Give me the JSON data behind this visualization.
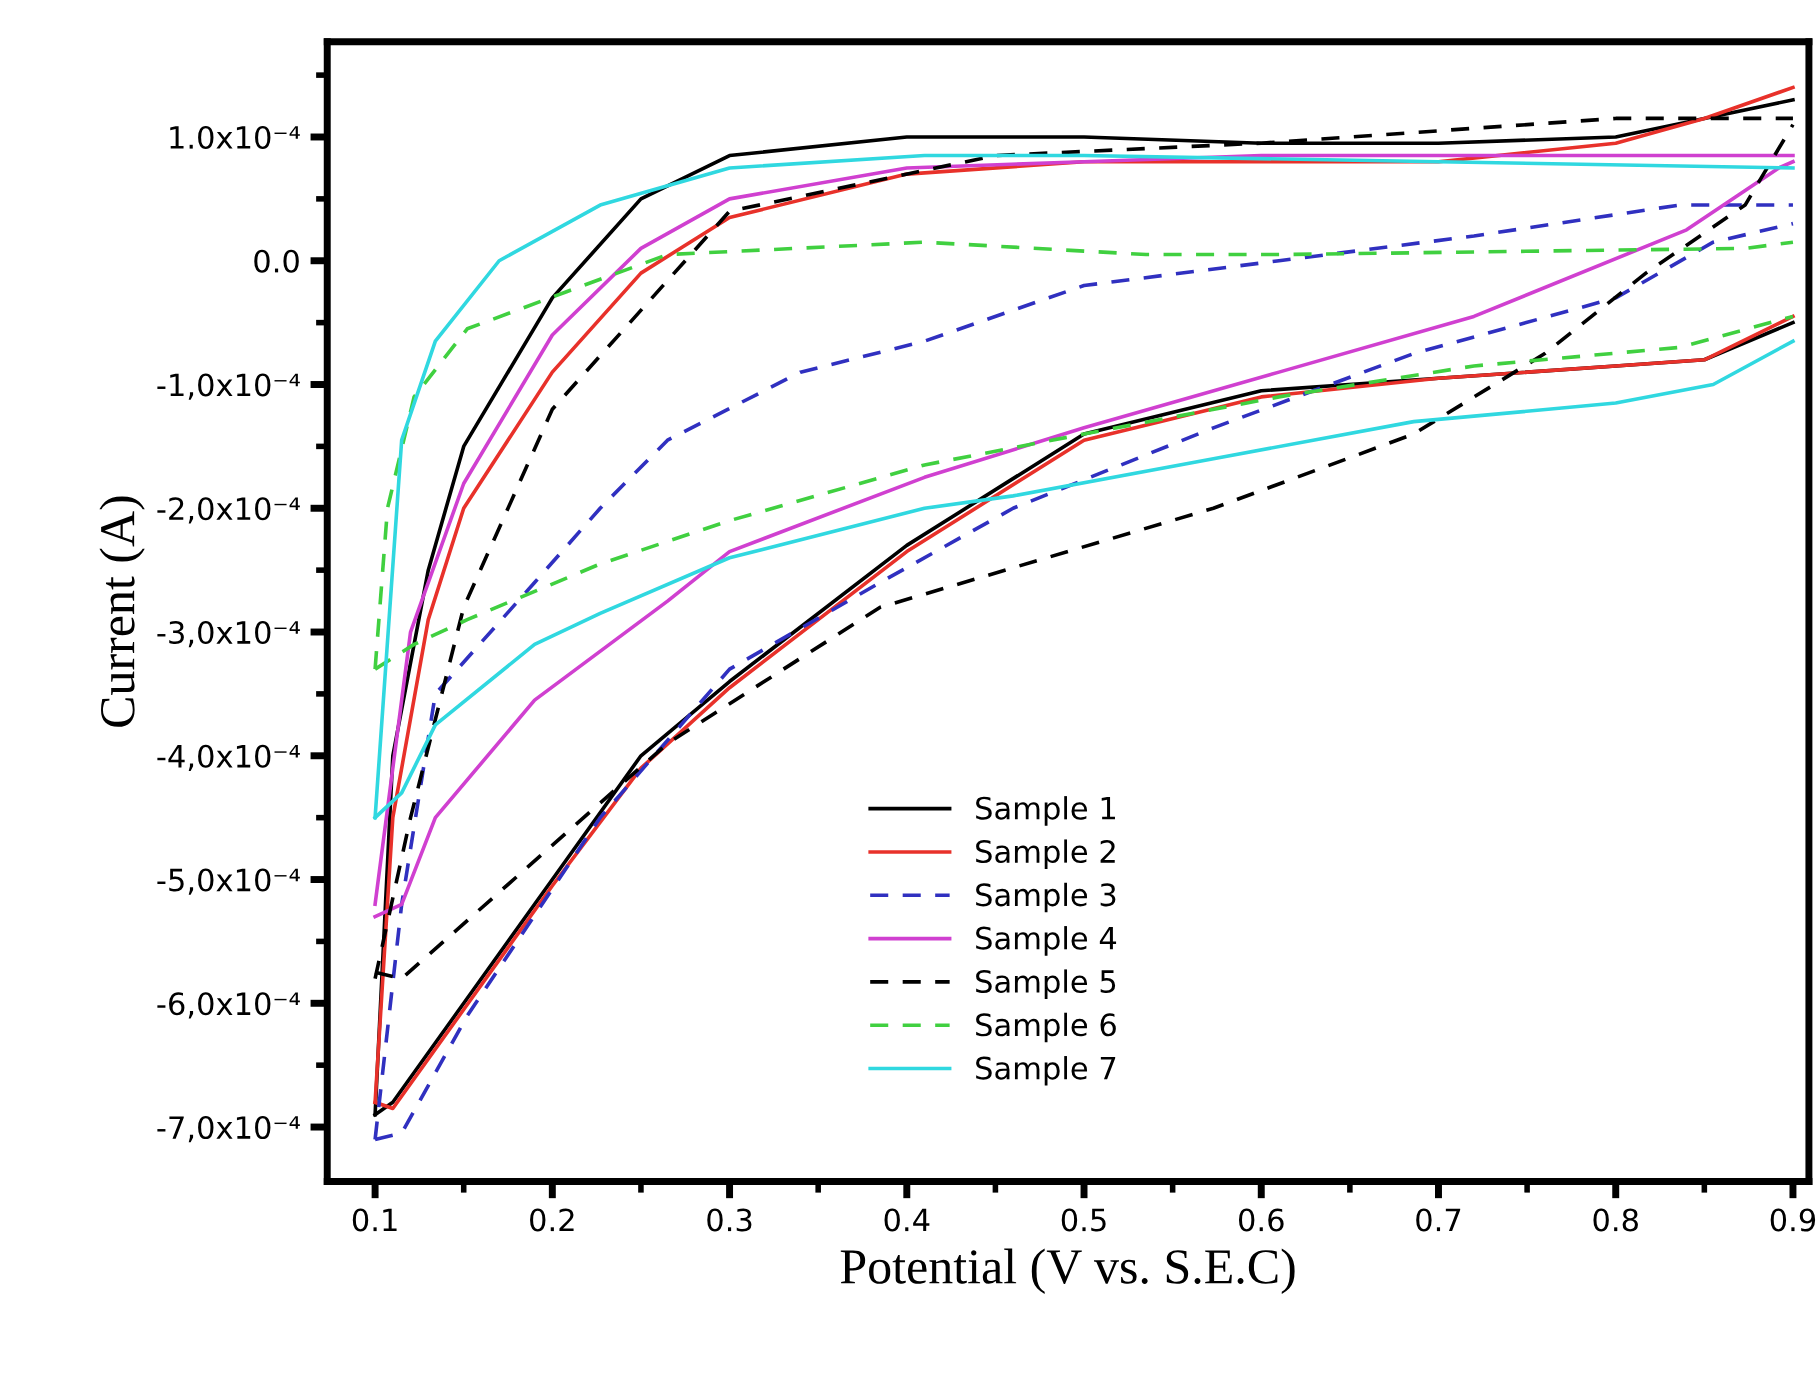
{
  "chart_data": {
    "type": "line",
    "xlabel": "Potential (V vs. S.E.C)",
    "ylabel": "Current (A)",
    "xlim": [
      0.073,
      0.909
    ],
    "ylim": [
      -0.000744,
      0.000177
    ],
    "xticks": [
      0.1,
      0.2,
      0.3,
      0.4,
      0.5,
      0.6,
      0.7,
      0.8,
      0.9
    ],
    "yticks": [
      {
        "value": 0.0001,
        "label": "1.0x10⁻⁴"
      },
      {
        "value": 0,
        "label": "0.0"
      },
      {
        "value": -0.0001,
        "label": "-1,0x10⁻⁴"
      },
      {
        "value": -0.0002,
        "label": "-2,0x10⁻⁴"
      },
      {
        "value": -0.0003,
        "label": "-3,0x10⁻⁴"
      },
      {
        "value": -0.0004,
        "label": "-4,0x10⁻⁴"
      },
      {
        "value": -0.0005,
        "label": "-5,0x10⁻⁴"
      },
      {
        "value": -0.0006,
        "label": "-6,0x10⁻⁴"
      },
      {
        "value": -0.0007,
        "label": "-7,0x10⁻⁴"
      }
    ],
    "grid": false,
    "legend": "bottom",
    "marker": "none",
    "series": [
      {
        "name": "Sample 1",
        "color": "#000000",
        "line_style": "solid",
        "x": [
          0.1,
          0.11,
          0.13,
          0.15,
          0.2,
          0.25,
          0.3,
          0.4,
          0.5,
          0.6,
          0.7,
          0.8,
          0.85,
          0.9
        ],
        "values": [
          -0.00069,
          -0.0004,
          -0.00025,
          -0.00015,
          -3e-05,
          5e-05,
          8.5e-05,
          0.0001,
          0.0001,
          9.5e-05,
          9.5e-05,
          0.0001,
          0.000115,
          0.00013
        ]
      },
      {
        "color": "#000000",
        "line_style": "solid",
        "x": [
          0.1,
          0.11,
          0.15,
          0.2,
          0.25,
          0.3,
          0.4,
          0.5,
          0.6,
          0.7,
          0.8,
          0.85,
          0.9
        ],
        "values": [
          -0.00069,
          -0.00068,
          -0.0006,
          -0.0005,
          -0.0004,
          -0.00034,
          -0.00023,
          -0.00014,
          -0.000105,
          -9.5e-05,
          -8.5e-05,
          -8e-05,
          -5e-05
        ]
      },
      {
        "name": "Sample 2",
        "color": "#e8312a",
        "line_style": "solid",
        "x": [
          0.1,
          0.11,
          0.13,
          0.15,
          0.2,
          0.25,
          0.3,
          0.4,
          0.5,
          0.6,
          0.7,
          0.8,
          0.85,
          0.9
        ],
        "values": [
          -0.00068,
          -0.00045,
          -0.00029,
          -0.0002,
          -9e-05,
          -1e-05,
          3.5e-05,
          7e-05,
          8e-05,
          8e-05,
          8e-05,
          9.5e-05,
          0.000115,
          0.00014
        ]
      },
      {
        "color": "#e8312a",
        "line_style": "solid",
        "x": [
          0.1,
          0.11,
          0.15,
          0.2,
          0.25,
          0.3,
          0.4,
          0.5,
          0.6,
          0.7,
          0.8,
          0.85,
          0.9
        ],
        "values": [
          -0.00068,
          -0.000685,
          -0.000605,
          -0.000505,
          -0.00041,
          -0.000345,
          -0.000235,
          -0.000145,
          -0.00011,
          -9.5e-05,
          -8.5e-05,
          -8e-05,
          -4.5e-05
        ]
      },
      {
        "name": "Sample 3",
        "color": "#3030c0",
        "line_style": "dashed",
        "x": [
          0.1,
          0.115,
          0.134,
          0.19,
          0.227,
          0.265,
          0.34,
          0.41,
          0.5,
          0.61,
          0.72,
          0.836,
          0.89,
          0.9
        ],
        "values": [
          -0.00071,
          -0.00052,
          -0.00035,
          -0.00026,
          -0.0002,
          -0.000145,
          -9e-05,
          -6.5e-05,
          -2e-05,
          0.0,
          2e-05,
          4.5e-05,
          4.5e-05,
          4.5e-05
        ]
      },
      {
        "color": "#3030c0",
        "line_style": "dashed",
        "x": [
          0.1,
          0.115,
          0.152,
          0.227,
          0.3,
          0.385,
          0.46,
          0.573,
          0.686,
          0.8,
          0.855,
          0.9
        ],
        "values": [
          -0.00071,
          -0.000705,
          -0.00061,
          -0.00045,
          -0.00033,
          -0.00026,
          -0.0002,
          -0.000135,
          -7.5e-05,
          -3e-05,
          1.5e-05,
          3e-05
        ]
      },
      {
        "name": "Sample 4",
        "color": "#d040d0",
        "line_style": "solid",
        "x": [
          0.1,
          0.12,
          0.15,
          0.2,
          0.25,
          0.3,
          0.4,
          0.5,
          0.6,
          0.7,
          0.8,
          0.9
        ],
        "values": [
          -0.00052,
          -0.0003,
          -0.00018,
          -6e-05,
          1e-05,
          5e-05,
          7.5e-05,
          8e-05,
          8.5e-05,
          8.5e-05,
          8.5e-05,
          8.5e-05
        ]
      },
      {
        "color": "#d040d0",
        "line_style": "solid",
        "x": [
          0.1,
          0.115,
          0.134,
          0.19,
          0.265,
          0.3,
          0.41,
          0.5,
          0.61,
          0.72,
          0.84,
          0.892,
          0.9
        ],
        "values": [
          -0.00053,
          -0.00052,
          -0.00045,
          -0.000355,
          -0.000275,
          -0.000235,
          -0.000175,
          -0.000135,
          -9e-05,
          -4.5e-05,
          2.5e-05,
          7.5e-05,
          8e-05
        ]
      },
      {
        "name": "Sample 5",
        "color": "#000000",
        "line_style": "dashed",
        "x": [
          0.1,
          0.12,
          0.15,
          0.2,
          0.3,
          0.45,
          0.6,
          0.8,
          0.892,
          0.9
        ],
        "values": [
          -0.00058,
          -0.00045,
          -0.00028,
          -0.00012,
          4e-05,
          8.5e-05,
          9.5e-05,
          0.000115,
          0.000115,
          0.000115
        ]
      },
      {
        "color": "#000000",
        "line_style": "dashed",
        "x": [
          0.1,
          0.115,
          0.265,
          0.385,
          0.573,
          0.686,
          0.76,
          0.817,
          0.873,
          0.9
        ],
        "values": [
          -0.000575,
          -0.00058,
          -0.00039,
          -0.00028,
          -0.0002,
          -0.00014,
          -7.5e-05,
          -1e-05,
          4.5e-05,
          0.00011
        ]
      },
      {
        "name": "Sample 6",
        "color": "#40d040",
        "line_style": "dashed",
        "x": [
          0.1,
          0.107,
          0.122,
          0.152,
          0.208,
          0.265,
          0.41,
          0.535,
          0.61,
          0.873,
          0.9
        ],
        "values": [
          -0.00033,
          -0.0002,
          -0.00011,
          -5.5e-05,
          -2.5e-05,
          5e-06,
          1.5e-05,
          5e-06,
          5e-06,
          1e-05,
          1.5e-05
        ]
      },
      {
        "color": "#40d040",
        "line_style": "dashed",
        "x": [
          0.1,
          0.122,
          0.152,
          0.227,
          0.3,
          0.41,
          0.5,
          0.61,
          0.72,
          0.836,
          0.9
        ],
        "values": [
          -0.00033,
          -0.00031,
          -0.00029,
          -0.000245,
          -0.00021,
          -0.000165,
          -0.00014,
          -0.00011,
          -8.5e-05,
          -7e-05,
          -4.5e-05
        ]
      },
      {
        "name": "Sample 7",
        "color": "#30d8e0",
        "line_style": "solid",
        "x": [
          0.1,
          0.115,
          0.134,
          0.17,
          0.227,
          0.3,
          0.41,
          0.5,
          0.7,
          0.9
        ],
        "values": [
          -0.00045,
          -0.000145,
          -6.5e-05,
          0.0,
          4.5e-05,
          7.5e-05,
          8.5e-05,
          8.5e-05,
          8e-05,
          7.5e-05
        ]
      },
      {
        "color": "#30d8e0",
        "line_style": "solid",
        "x": [
          0.1,
          0.115,
          0.134,
          0.19,
          0.227,
          0.3,
          0.41,
          0.46,
          0.573,
          0.686,
          0.8,
          0.855,
          0.9
        ],
        "values": [
          -0.00045,
          -0.00043,
          -0.000375,
          -0.00031,
          -0.000285,
          -0.00024,
          -0.0002,
          -0.00019,
          -0.00016,
          -0.00013,
          -0.000115,
          -0.0001,
          -6.5e-05
        ]
      }
    ]
  }
}
